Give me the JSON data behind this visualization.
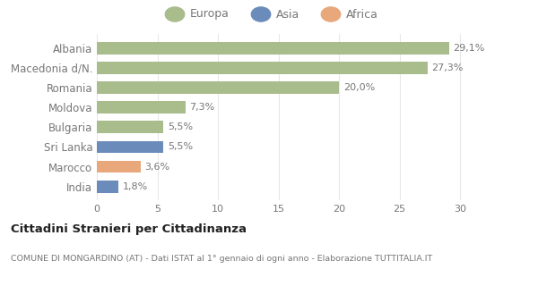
{
  "categories": [
    "India",
    "Marocco",
    "Sri Lanka",
    "Bulgaria",
    "Moldova",
    "Romania",
    "Macedonia d/N.",
    "Albania"
  ],
  "values": [
    1.8,
    3.6,
    5.5,
    5.5,
    7.3,
    20.0,
    27.3,
    29.1
  ],
  "labels": [
    "1,8%",
    "3,6%",
    "5,5%",
    "5,5%",
    "7,3%",
    "20,0%",
    "27,3%",
    "29,1%"
  ],
  "colors": [
    "#6b8cba",
    "#e8a87c",
    "#6b8cba",
    "#a8bc8c",
    "#a8bc8c",
    "#a8bc8c",
    "#a8bc8c",
    "#a8bc8c"
  ],
  "legend": [
    {
      "label": "Europa",
      "color": "#a8bc8c"
    },
    {
      "label": "Asia",
      "color": "#6b8cba"
    },
    {
      "label": "Africa",
      "color": "#e8a87c"
    }
  ],
  "xlim": [
    0,
    32
  ],
  "xticks": [
    0,
    5,
    10,
    15,
    20,
    25,
    30
  ],
  "title": "Cittadini Stranieri per Cittadinanza",
  "subtitle": "COMUNE DI MONGARDINO (AT) - Dati ISTAT al 1° gennaio di ogni anno - Elaborazione TUTTITALIA.IT",
  "bg_color": "#ffffff",
  "grid_color": "#e8e8e8",
  "label_color": "#777777",
  "title_color": "#222222"
}
